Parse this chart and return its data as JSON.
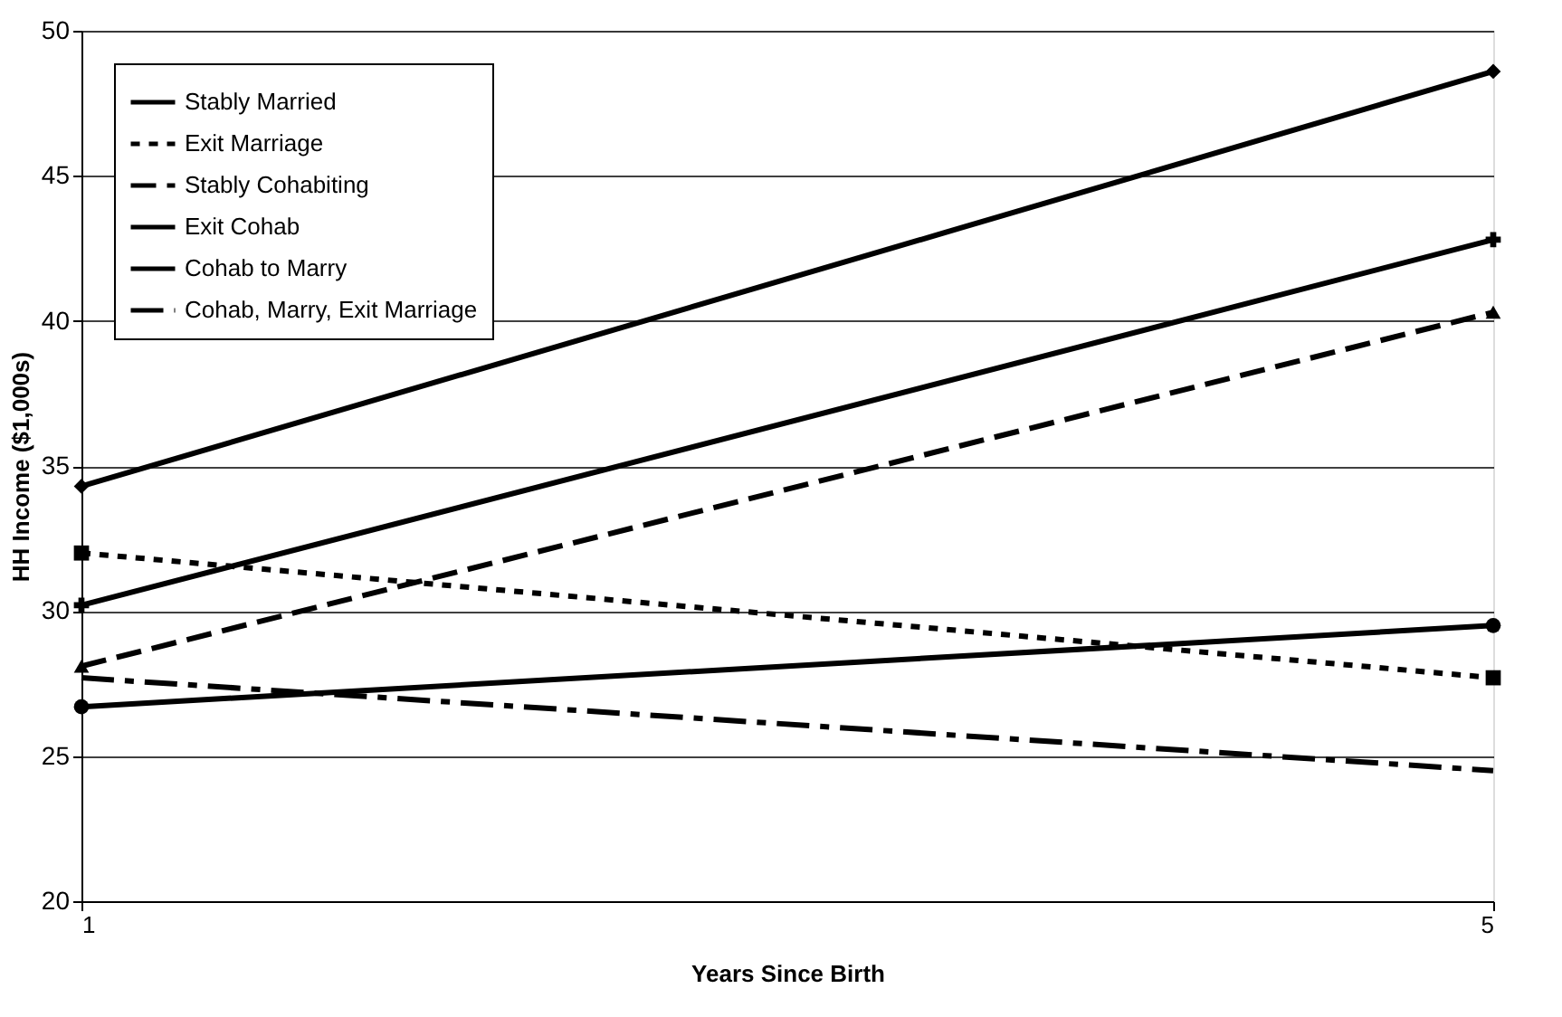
{
  "chart_data": {
    "type": "line",
    "xlabel": "Years Since Birth",
    "ylabel": "HH Income ($1,000s)",
    "x": [
      1,
      5
    ],
    "xlim": [
      1,
      5
    ],
    "xticks": [
      1,
      5
    ],
    "ylim": [
      20,
      50
    ],
    "yticks": [
      20,
      25,
      30,
      35,
      40,
      45,
      50
    ],
    "grid": "y",
    "legend": "top left",
    "series": [
      {
        "name": "Stably Married",
        "color": "#000000",
        "values": [
          34.3,
          48.6
        ],
        "marker": "diamond",
        "line_style": "solid"
      },
      {
        "name": "Exit Marriage",
        "color": "#000000",
        "values": [
          32.0,
          27.7
        ],
        "marker": "square",
        "line_style": "dotted"
      },
      {
        "name": "Stably Cohabiting",
        "color": "#000000",
        "values": [
          28.1,
          40.3
        ],
        "marker": "triangle",
        "line_style": "dashed"
      },
      {
        "name": "Exit  Cohab",
        "color": "#000000",
        "values": [
          26.7,
          29.5
        ],
        "marker": "circle",
        "line_style": "solid"
      },
      {
        "name": "Cohab to Marry",
        "color": "#000000",
        "values": [
          30.2,
          42.8
        ],
        "marker": "cross",
        "line_style": "solid"
      },
      {
        "name": "Cohab, Marry, Exit Marriage",
        "color": "#000000",
        "values": [
          27.7,
          24.5
        ],
        "marker": "none",
        "line_style": "dashdot"
      }
    ]
  }
}
